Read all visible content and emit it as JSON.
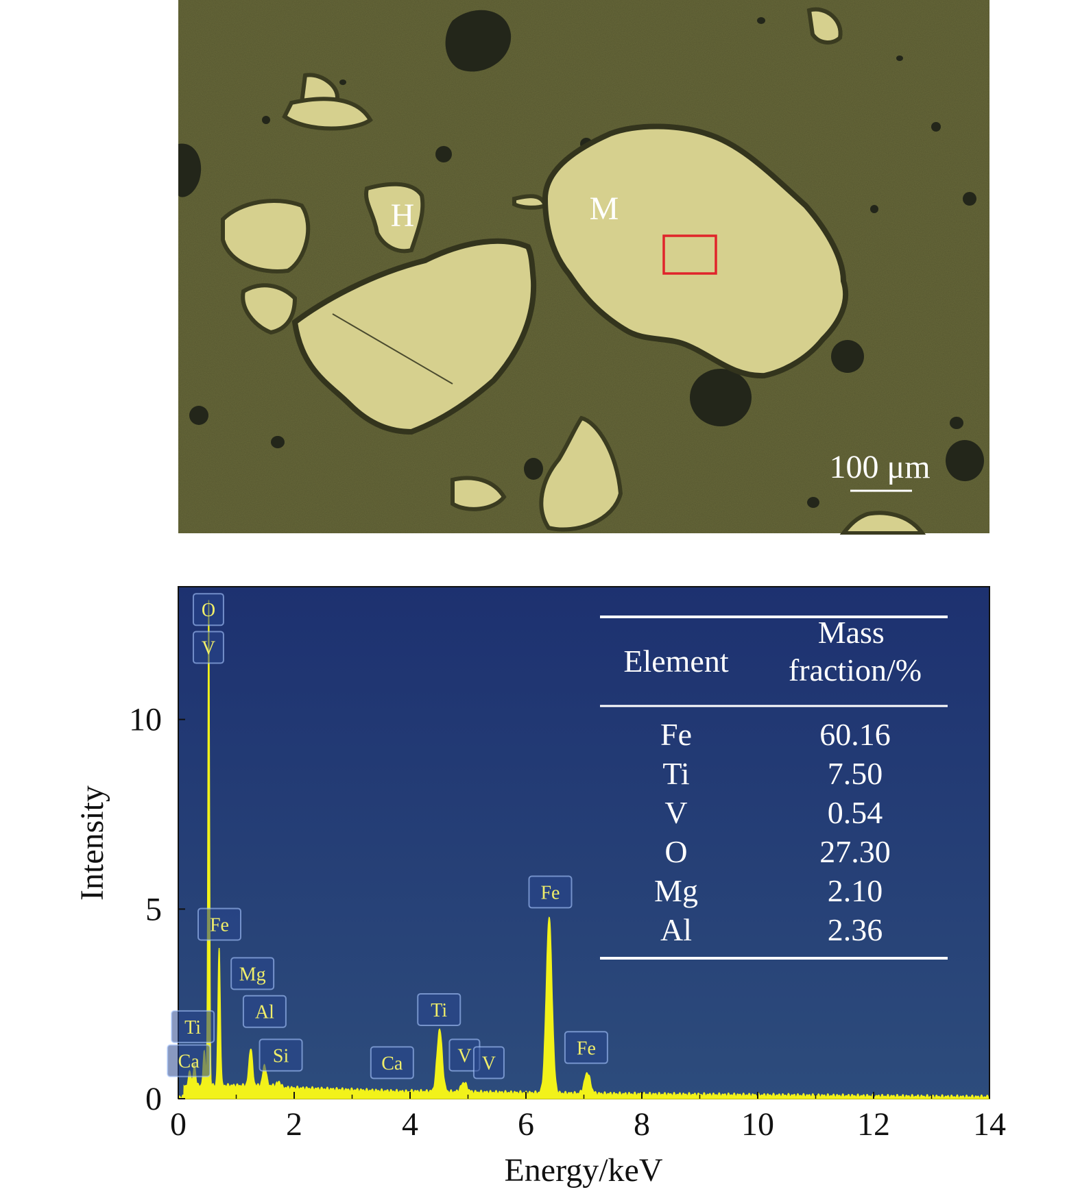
{
  "micrograph": {
    "phase_labels": [
      "H",
      "M"
    ],
    "scale_bar_label": "100 μm",
    "colors": {
      "matrix": "#68693a",
      "grain": "#d6d08e",
      "pore": "#23261a",
      "analysis_box": "#e0242a"
    }
  },
  "chart_data": {
    "type": "line",
    "xlabel": "Energy/keV",
    "ylabel": "Intensity",
    "xlim": [
      0,
      14
    ],
    "ylim": [
      0,
      13.5
    ],
    "x_ticks": [
      "0",
      "2",
      "4",
      "6",
      "8",
      "10",
      "12",
      "14"
    ],
    "y_ticks": [
      "0",
      "5",
      "10"
    ],
    "grid": false,
    "colors": {
      "background_top": "#1d3170",
      "background_bottom": "#2d4c7c",
      "spectrum": "#f2f21a",
      "tag_text": "#f0ee6a"
    },
    "spectrum_peaks": [
      {
        "energy": 0.2,
        "height": 0.4,
        "width": 0.02
      },
      {
        "energy": 0.28,
        "height": 0.55,
        "width": 0.02
      },
      {
        "energy": 0.45,
        "height": 0.9,
        "width": 0.02
      },
      {
        "energy": 0.525,
        "height": 12.8,
        "width": 0.014
      },
      {
        "energy": 0.705,
        "height": 3.6,
        "width": 0.02
      },
      {
        "energy": 1.25,
        "height": 1.0,
        "width": 0.03
      },
      {
        "energy": 1.49,
        "height": 0.55,
        "width": 0.03
      },
      {
        "energy": 1.74,
        "height": 0.15,
        "width": 0.03
      },
      {
        "energy": 4.51,
        "height": 1.65,
        "width": 0.045
      },
      {
        "energy": 4.93,
        "height": 0.25,
        "width": 0.05
      },
      {
        "energy": 6.4,
        "height": 4.65,
        "width": 0.05
      },
      {
        "energy": 7.06,
        "height": 0.55,
        "width": 0.05
      }
    ],
    "peak_labels": [
      {
        "element": "O",
        "energy": 0.52,
        "intensity": 12.9
      },
      {
        "element": "V",
        "energy": 0.52,
        "intensity": 11.9
      },
      {
        "element": "Fe",
        "energy": 0.71,
        "intensity": 4.6
      },
      {
        "element": "Mg",
        "energy": 1.28,
        "intensity": 3.3
      },
      {
        "element": "Al",
        "energy": 1.49,
        "intensity": 2.3
      },
      {
        "element": "Ti",
        "energy": 0.25,
        "intensity": 1.9
      },
      {
        "element": "Ca",
        "energy": 0.18,
        "intensity": 1.0
      },
      {
        "element": "Si",
        "energy": 1.77,
        "intensity": 1.15
      },
      {
        "element": "Ca",
        "energy": 3.69,
        "intensity": 0.95
      },
      {
        "element": "Ti",
        "energy": 4.5,
        "intensity": 2.35
      },
      {
        "element": "V",
        "energy": 4.94,
        "intensity": 1.15
      },
      {
        "element": "V",
        "energy": 5.36,
        "intensity": 0.95
      },
      {
        "element": "Fe",
        "energy": 6.42,
        "intensity": 5.45
      },
      {
        "element": "Fe",
        "energy": 7.04,
        "intensity": 1.35
      }
    ],
    "table": {
      "headers": [
        "Element",
        "Mass fraction/%"
      ],
      "rows": [
        {
          "element": "Fe",
          "mass_fraction": "60.16"
        },
        {
          "element": "Ti",
          "mass_fraction": "7.50"
        },
        {
          "element": "V",
          "mass_fraction": "0.54"
        },
        {
          "element": "O",
          "mass_fraction": "27.30"
        },
        {
          "element": "Mg",
          "mass_fraction": "2.10"
        },
        {
          "element": "Al",
          "mass_fraction": "2.36"
        }
      ]
    }
  }
}
